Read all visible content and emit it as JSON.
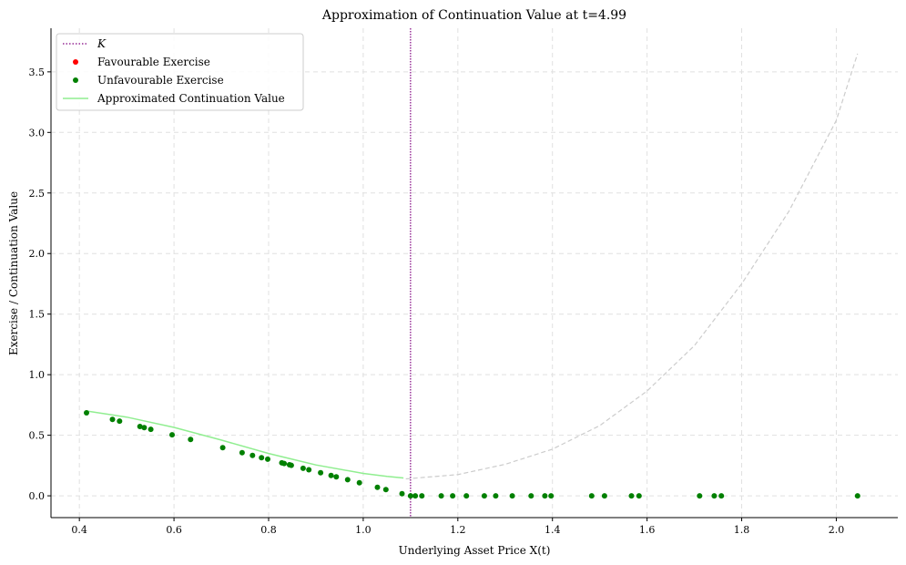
{
  "chart_data": {
    "type": "scatter",
    "title": "Approximation of Continuation Value at t=4.99",
    "xlabel": "Underlying Asset Price X(t)",
    "ylabel": "Exercise / Continuation Value",
    "xlim": [
      0.34,
      2.13
    ],
    "ylim": [
      -0.18,
      3.86
    ],
    "xticks": [
      0.4,
      0.6,
      0.8,
      1.0,
      1.2,
      1.4,
      1.6,
      1.8,
      2.0
    ],
    "yticks": [
      0.0,
      0.5,
      1.0,
      1.5,
      2.0,
      2.5,
      3.0,
      3.5
    ],
    "xtick_labels": [
      "0.4",
      "0.6",
      "0.8",
      "1.0",
      "1.2",
      "1.4",
      "1.6",
      "1.8",
      "2.0"
    ],
    "ytick_labels": [
      "0.0",
      "0.5",
      "1.0",
      "1.5",
      "2.0",
      "2.5",
      "3.0",
      "3.5"
    ],
    "grid": true,
    "legend_position": "top-left",
    "strike": 1.1,
    "legend": [
      {
        "label": "K",
        "kind": "dotted-line",
        "color": "#800080"
      },
      {
        "label": "Favourable Exercise",
        "kind": "marker",
        "color": "#ff0000"
      },
      {
        "label": "Unfavourable Exercise",
        "kind": "marker",
        "color": "#008000"
      },
      {
        "label": "Approximated Continuation Value",
        "kind": "line",
        "color": "#90ee90"
      }
    ],
    "series": [
      {
        "name": "Favourable Exercise",
        "color": "#ff0000",
        "points": []
      },
      {
        "name": "Unfavourable Exercise",
        "color": "#008000",
        "points": [
          [
            0.415,
            0.685
          ],
          [
            0.47,
            0.63
          ],
          [
            0.485,
            0.617
          ],
          [
            0.528,
            0.572
          ],
          [
            0.537,
            0.563
          ],
          [
            0.551,
            0.549
          ],
          [
            0.596,
            0.504
          ],
          [
            0.635,
            0.465
          ],
          [
            0.703,
            0.397
          ],
          [
            0.744,
            0.356
          ],
          [
            0.766,
            0.334
          ],
          [
            0.785,
            0.315
          ],
          [
            0.798,
            0.302
          ],
          [
            0.828,
            0.272
          ],
          [
            0.833,
            0.267
          ],
          [
            0.844,
            0.256
          ],
          [
            0.848,
            0.252
          ],
          [
            0.873,
            0.227
          ],
          [
            0.885,
            0.215
          ],
          [
            0.91,
            0.19
          ],
          [
            0.932,
            0.168
          ],
          [
            0.943,
            0.157
          ],
          [
            0.967,
            0.133
          ],
          [
            0.992,
            0.108
          ],
          [
            1.03,
            0.07
          ],
          [
            1.048,
            0.052
          ],
          [
            1.082,
            0.018
          ],
          [
            1.1,
            0.0
          ],
          [
            1.11,
            0.0
          ],
          [
            1.124,
            0.0
          ],
          [
            1.165,
            0.0
          ],
          [
            1.189,
            0.0
          ],
          [
            1.218,
            0.0
          ],
          [
            1.256,
            0.0
          ],
          [
            1.28,
            0.0
          ],
          [
            1.315,
            0.0
          ],
          [
            1.355,
            0.0
          ],
          [
            1.384,
            0.0
          ],
          [
            1.397,
            0.0
          ],
          [
            1.483,
            0.0
          ],
          [
            1.51,
            0.0
          ],
          [
            1.567,
            0.0
          ],
          [
            1.583,
            0.0
          ],
          [
            1.711,
            0.0
          ],
          [
            1.742,
            0.0
          ],
          [
            1.757,
            0.0
          ],
          [
            2.045,
            0.0
          ]
        ]
      },
      {
        "name": "Approximated Continuation Value",
        "color": "#90ee90",
        "points": [
          [
            0.415,
            0.7
          ],
          [
            0.5,
            0.65
          ],
          [
            0.6,
            0.565
          ],
          [
            0.7,
            0.46
          ],
          [
            0.8,
            0.35
          ],
          [
            0.9,
            0.255
          ],
          [
            1.0,
            0.185
          ],
          [
            1.05,
            0.16
          ],
          [
            1.085,
            0.147
          ]
        ]
      },
      {
        "name": "extrapolated",
        "color": "#cccccc",
        "points": [
          [
            1.09,
            0.14
          ],
          [
            1.2,
            0.175
          ],
          [
            1.3,
            0.26
          ],
          [
            1.4,
            0.385
          ],
          [
            1.5,
            0.58
          ],
          [
            1.6,
            0.865
          ],
          [
            1.7,
            1.24
          ],
          [
            1.8,
            1.75
          ],
          [
            1.9,
            2.35
          ],
          [
            2.0,
            3.1
          ],
          [
            2.045,
            3.65
          ]
        ]
      }
    ]
  }
}
